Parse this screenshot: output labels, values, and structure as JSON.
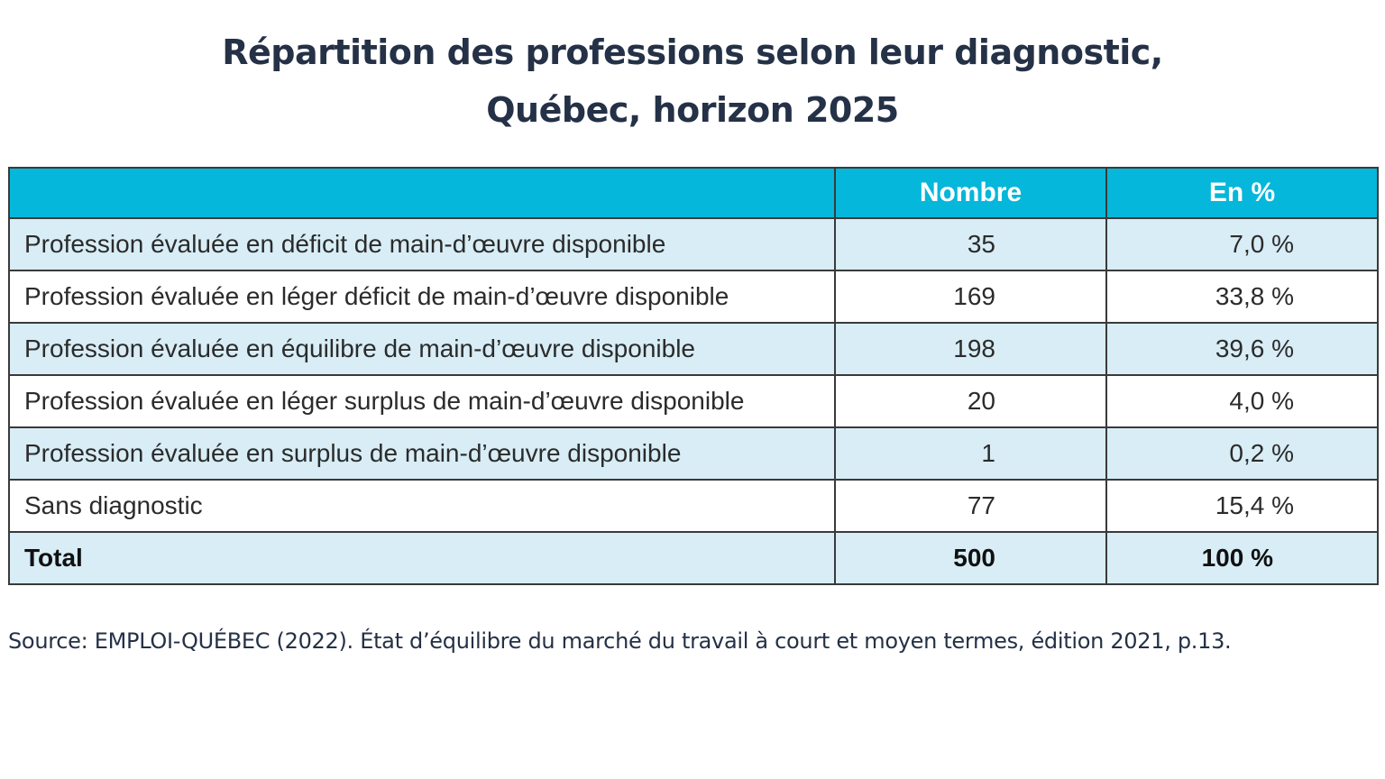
{
  "title": {
    "line1": "Répartition des professions selon leur diagnostic,",
    "line2": "Québec, horizon 2025"
  },
  "table": {
    "headers": [
      "",
      "Nombre",
      "En %"
    ],
    "rows": [
      {
        "label": "Profession évaluée en déficit de main-d’œuvre disponible",
        "nombre": "35",
        "pct": "7,0 %"
      },
      {
        "label": "Profession évaluée en léger déficit de main-d’œuvre disponible",
        "nombre": "169",
        "pct": "33,8 %"
      },
      {
        "label": "Profession évaluée en équilibre de main-d’œuvre disponible",
        "nombre": "198",
        "pct": "39,6 %"
      },
      {
        "label": "Profession évaluée en léger surplus de main-d’œuvre disponible",
        "nombre": "20",
        "pct": "4,0 %"
      },
      {
        "label": "Profession évaluée en surplus de main-d’œuvre disponible",
        "nombre": "1",
        "pct": "0,2 %"
      },
      {
        "label": "Sans diagnostic",
        "nombre": "77",
        "pct": "15,4 %"
      }
    ],
    "total": {
      "label": "Total",
      "nombre": "500",
      "pct": "100 %"
    }
  },
  "source": "Source: EMPLOI-QUÉBEC (2022). État d’équilibre du marché du travail à court et moyen termes, édition 2021, p.13.",
  "colors": {
    "header_bg": "#05b7da",
    "shaded_row_bg": "#d8edf6",
    "title_text": "#243146"
  }
}
